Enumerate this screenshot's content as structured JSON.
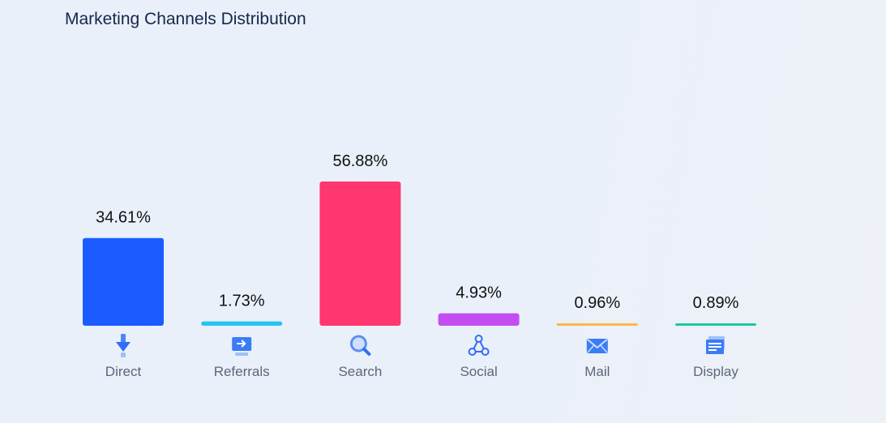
{
  "header": {
    "title": "Marketing Channels Distribution"
  },
  "chart_data": {
    "type": "bar",
    "title": "Marketing Channels Distribution",
    "categories": [
      "Direct",
      "Referrals",
      "Search",
      "Social",
      "Mail",
      "Display"
    ],
    "values": [
      34.61,
      1.73,
      56.88,
      4.93,
      0.96,
      0.89
    ],
    "value_labels": [
      "34.61%",
      "1.73%",
      "56.88%",
      "4.93%",
      "0.96%",
      "0.89%"
    ],
    "colors": [
      "#1a5cff",
      "#27c3f2",
      "#ff3670",
      "#c34df2",
      "#ffb648",
      "#1fc7a0"
    ],
    "icons": [
      "arrow-down-icon",
      "referral-monitor-icon",
      "search-icon",
      "social-share-icon",
      "mail-icon",
      "display-window-icon"
    ],
    "ylim": [
      0,
      56.88
    ],
    "grid": false,
    "legend": "none"
  }
}
